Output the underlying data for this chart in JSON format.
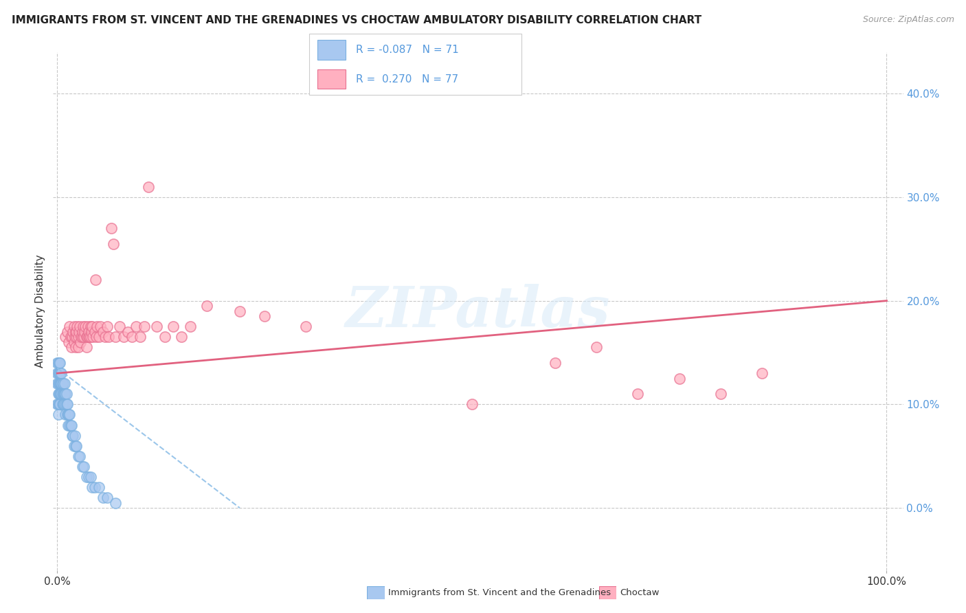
{
  "title": "IMMIGRANTS FROM ST. VINCENT AND THE GRENADINES VS CHOCTAW AMBULATORY DISABILITY CORRELATION CHART",
  "source": "Source: ZipAtlas.com",
  "xlabel_blue": "Immigrants from St. Vincent and the Grenadines",
  "xlabel_pink": "Choctaw",
  "ylabel": "Ambulatory Disability",
  "R_blue": -0.087,
  "N_blue": 71,
  "R_pink": 0.27,
  "N_pink": 77,
  "blue_scatter_x": [
    0.0,
    0.0,
    0.0,
    0.0,
    0.001,
    0.001,
    0.001,
    0.001,
    0.001,
    0.001,
    0.002,
    0.002,
    0.002,
    0.002,
    0.002,
    0.002,
    0.003,
    0.003,
    0.003,
    0.003,
    0.003,
    0.004,
    0.004,
    0.004,
    0.005,
    0.005,
    0.005,
    0.005,
    0.006,
    0.006,
    0.006,
    0.007,
    0.007,
    0.007,
    0.008,
    0.008,
    0.009,
    0.009,
    0.01,
    0.01,
    0.01,
    0.011,
    0.011,
    0.012,
    0.012,
    0.013,
    0.013,
    0.014,
    0.015,
    0.015,
    0.016,
    0.017,
    0.018,
    0.019,
    0.02,
    0.021,
    0.022,
    0.023,
    0.025,
    0.027,
    0.03,
    0.032,
    0.035,
    0.038,
    0.04,
    0.042,
    0.045,
    0.05,
    0.055,
    0.06,
    0.07
  ],
  "blue_scatter_y": [
    0.14,
    0.13,
    0.12,
    0.1,
    0.14,
    0.13,
    0.12,
    0.11,
    0.1,
    0.09,
    0.14,
    0.13,
    0.13,
    0.12,
    0.11,
    0.1,
    0.14,
    0.13,
    0.12,
    0.11,
    0.1,
    0.13,
    0.12,
    0.11,
    0.13,
    0.12,
    0.12,
    0.11,
    0.12,
    0.11,
    0.1,
    0.12,
    0.11,
    0.1,
    0.11,
    0.1,
    0.12,
    0.11,
    0.11,
    0.1,
    0.09,
    0.11,
    0.1,
    0.1,
    0.09,
    0.09,
    0.08,
    0.09,
    0.09,
    0.08,
    0.08,
    0.08,
    0.07,
    0.07,
    0.06,
    0.07,
    0.06,
    0.06,
    0.05,
    0.05,
    0.04,
    0.04,
    0.03,
    0.03,
    0.03,
    0.02,
    0.02,
    0.02,
    0.01,
    0.01,
    0.005
  ],
  "pink_scatter_x": [
    0.01,
    0.012,
    0.014,
    0.015,
    0.016,
    0.017,
    0.018,
    0.019,
    0.02,
    0.02,
    0.021,
    0.022,
    0.022,
    0.023,
    0.023,
    0.024,
    0.025,
    0.025,
    0.026,
    0.027,
    0.028,
    0.029,
    0.03,
    0.03,
    0.031,
    0.032,
    0.033,
    0.034,
    0.035,
    0.035,
    0.036,
    0.037,
    0.038,
    0.038,
    0.039,
    0.04,
    0.04,
    0.041,
    0.042,
    0.043,
    0.045,
    0.046,
    0.047,
    0.048,
    0.05,
    0.052,
    0.055,
    0.058,
    0.06,
    0.062,
    0.065,
    0.068,
    0.07,
    0.075,
    0.08,
    0.085,
    0.09,
    0.095,
    0.1,
    0.105,
    0.11,
    0.12,
    0.13,
    0.14,
    0.15,
    0.16,
    0.18,
    0.22,
    0.25,
    0.3,
    0.5,
    0.6,
    0.65,
    0.7,
    0.75,
    0.8,
    0.85
  ],
  "pink_scatter_y": [
    0.165,
    0.17,
    0.16,
    0.175,
    0.165,
    0.155,
    0.165,
    0.17,
    0.16,
    0.175,
    0.165,
    0.17,
    0.155,
    0.165,
    0.17,
    0.175,
    0.165,
    0.155,
    0.17,
    0.175,
    0.16,
    0.165,
    0.165,
    0.17,
    0.175,
    0.165,
    0.17,
    0.175,
    0.165,
    0.155,
    0.165,
    0.175,
    0.165,
    0.17,
    0.165,
    0.175,
    0.165,
    0.17,
    0.175,
    0.165,
    0.17,
    0.22,
    0.165,
    0.175,
    0.165,
    0.175,
    0.17,
    0.165,
    0.175,
    0.165,
    0.27,
    0.255,
    0.165,
    0.175,
    0.165,
    0.17,
    0.165,
    0.175,
    0.165,
    0.175,
    0.31,
    0.175,
    0.165,
    0.175,
    0.165,
    0.175,
    0.195,
    0.19,
    0.185,
    0.175,
    0.1,
    0.14,
    0.155,
    0.11,
    0.125,
    0.11,
    0.13
  ],
  "trend_blue_x0": 0.0,
  "trend_blue_x1": 0.22,
  "trend_blue_y0": 0.135,
  "trend_blue_y1": 0.0,
  "trend_pink_x0": 0.0,
  "trend_pink_x1": 1.0,
  "trend_pink_y0": 0.13,
  "trend_pink_y1": 0.2,
  "watermark": "ZIPatlas",
  "blue_color": "#a8c8f0",
  "blue_edge": "#7ab0e0",
  "pink_color": "#ffb0c0",
  "pink_edge": "#e87090",
  "trend_blue_color": "#90c0e8",
  "trend_pink_color": "#e05878",
  "grid_color": "#c8c8c8",
  "right_axis_color": "#5599dd",
  "ytick_values": [
    0.0,
    0.1,
    0.2,
    0.3,
    0.4
  ],
  "ytick_labels": [
    "0.0%",
    "10.0%",
    "20.0%",
    "30.0%",
    "40.0%"
  ],
  "xtick_values": [
    0.0,
    1.0
  ],
  "xtick_labels": [
    "0.0%",
    "100.0%"
  ],
  "xlim": [
    -0.005,
    1.02
  ],
  "ylim": [
    -0.06,
    0.44
  ]
}
